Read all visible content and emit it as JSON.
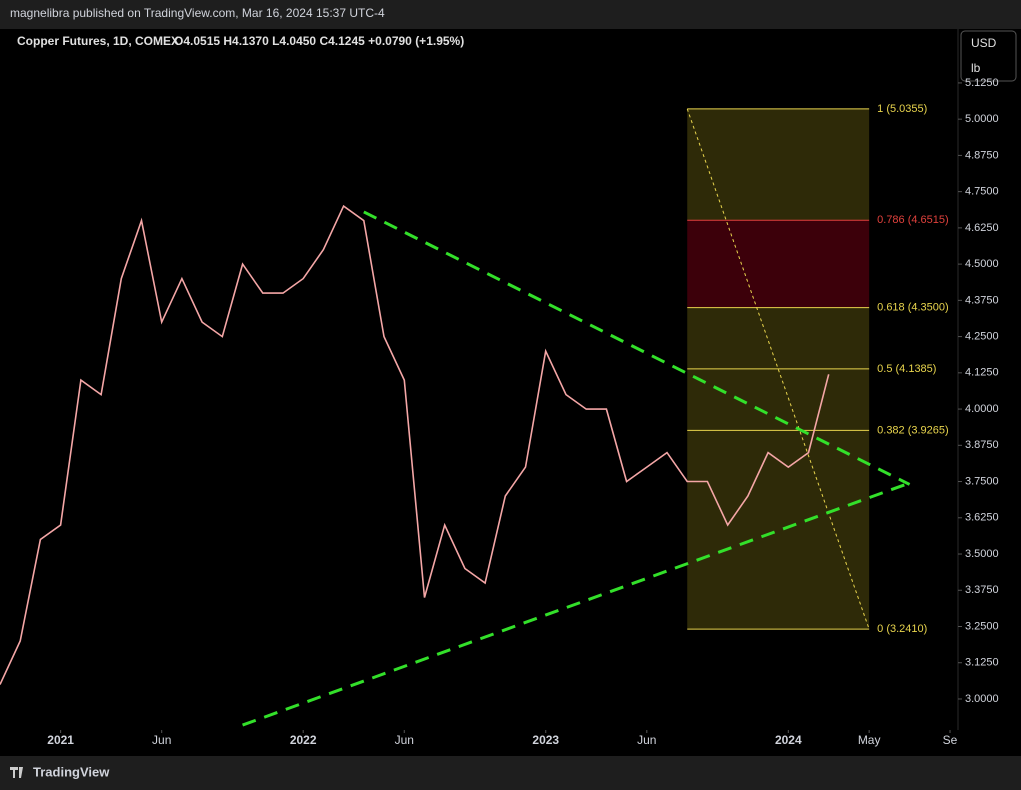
{
  "chart_data": {
    "type": "line",
    "publisher_line": "magnelibra published on TradingView.com, Mar 16, 2024 15:37 UTC-4",
    "title": "Copper Futures, 1D, COMEX",
    "ohlc_text": "O4.0515 H4.1370 L4.0450 C4.1245 +0.0790 (+1.95%)",
    "currency": "USD",
    "unit": "lb",
    "brand": "TradingView",
    "x": [
      "2020-10",
      "2020-11",
      "2020-12",
      "2021-01",
      "2021-02",
      "2021-03",
      "2021-04",
      "2021-05",
      "2021-06",
      "2021-07",
      "2021-08",
      "2021-09",
      "2021-10",
      "2021-11",
      "2021-12",
      "2022-01",
      "2022-02",
      "2022-03",
      "2022-04",
      "2022-05",
      "2022-06",
      "2022-07",
      "2022-08",
      "2022-09",
      "2022-10",
      "2022-11",
      "2022-12",
      "2023-01",
      "2023-02",
      "2023-03",
      "2023-04",
      "2023-05",
      "2023-06",
      "2023-07",
      "2023-08",
      "2023-09",
      "2023-10",
      "2023-11",
      "2023-12",
      "2024-01",
      "2024-02",
      "2024-03"
    ],
    "series": [
      {
        "color": "#f4a6a6",
        "values": [
          3.05,
          3.2,
          3.55,
          3.6,
          4.1,
          4.05,
          4.45,
          4.65,
          4.3,
          4.45,
          4.3,
          4.25,
          4.5,
          4.4,
          4.4,
          4.45,
          4.55,
          4.7,
          4.65,
          4.25,
          4.1,
          3.35,
          3.6,
          3.45,
          3.4,
          3.7,
          3.8,
          4.2,
          4.05,
          4.0,
          4.0,
          3.75,
          3.8,
          3.85,
          3.75,
          3.75,
          3.6,
          3.7,
          3.85,
          3.8,
          3.85,
          4.12
        ]
      }
    ],
    "xlim": [
      "2020-10",
      "2024-09"
    ],
    "xticks": [
      {
        "value": "2021-01",
        "label": "2021"
      },
      {
        "value": "2021-06",
        "label": "Jun"
      },
      {
        "value": "2022-01",
        "label": "2022"
      },
      {
        "value": "2022-06",
        "label": "Jun"
      },
      {
        "value": "2023-01",
        "label": "2023"
      },
      {
        "value": "2023-06",
        "label": "Jun"
      },
      {
        "value": "2024-01",
        "label": "2024"
      },
      {
        "value": "2024-05",
        "label": "May"
      },
      {
        "value": "2024-09",
        "label": "Se"
      }
    ],
    "ylim": [
      2.893,
      5.311
    ],
    "yticks": [
      {
        "value": 3,
        "label": "3.0000"
      },
      {
        "value": 3.125,
        "label": "3.1250"
      },
      {
        "value": 3.25,
        "label": "3.2500"
      },
      {
        "value": 3.375,
        "label": "3.3750"
      },
      {
        "value": 3.5,
        "label": "3.5000"
      },
      {
        "value": 3.625,
        "label": "3.6250"
      },
      {
        "value": 3.75,
        "label": "3.7500"
      },
      {
        "value": 3.875,
        "label": "3.8750"
      },
      {
        "value": 4,
        "label": "4.0000"
      },
      {
        "value": 4.125,
        "label": "4.1250"
      },
      {
        "value": 4.25,
        "label": "4.2500"
      },
      {
        "value": 4.375,
        "label": "4.3750"
      },
      {
        "value": 4.5,
        "label": "4.5000"
      },
      {
        "value": 4.625,
        "label": "4.6250"
      },
      {
        "value": 4.75,
        "label": "4.7500"
      },
      {
        "value": 4.875,
        "label": "4.8750"
      },
      {
        "value": 5,
        "label": "5.0000"
      },
      {
        "value": 5.125,
        "label": "5.1250"
      }
    ],
    "fib": {
      "start": "2023-08",
      "end": "2024-05",
      "levels": [
        {
          "ratio": 1,
          "value": 5.0355,
          "label": "1 (5.0355)",
          "color": "#e8d44d"
        },
        {
          "ratio": 0.786,
          "value": 4.6515,
          "label": "0.786 (4.6515)",
          "color": "#e0413c"
        },
        {
          "ratio": 0.618,
          "value": 4.35,
          "label": "0.618 (4.3500)",
          "color": "#e8d44d"
        },
        {
          "ratio": 0.5,
          "value": 4.1385,
          "label": "0.5 (4.1385)",
          "color": "#e8d44d"
        },
        {
          "ratio": 0.382,
          "value": 3.9265,
          "label": "0.382 (3.9265)",
          "color": "#e8d44d"
        },
        {
          "ratio": 0,
          "value": 3.241,
          "label": "0 (3.2410)",
          "color": "#e8d44d"
        }
      ]
    },
    "trendlines": [
      {
        "color": "#33e02a",
        "x": [
          "2022-04",
          "2024-07"
        ],
        "y": [
          4.68,
          3.74
        ]
      },
      {
        "color": "#33e02a",
        "x": [
          "2021-10",
          "2024-07"
        ],
        "y": [
          2.91,
          3.745
        ]
      }
    ]
  }
}
